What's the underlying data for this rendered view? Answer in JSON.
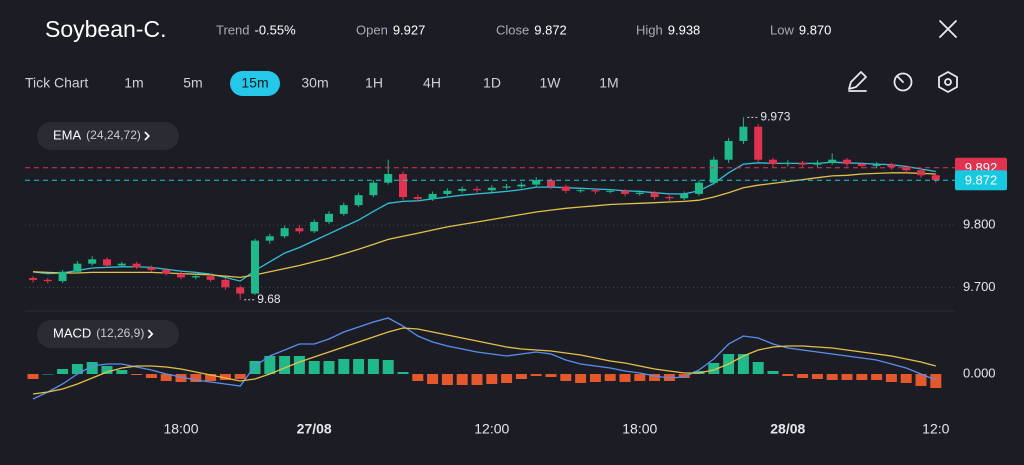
{
  "header": {
    "symbol": "Soybean-C.",
    "stats": [
      {
        "label": "Trend",
        "value": "-0.55%"
      },
      {
        "label": "Open",
        "value": "9.927"
      },
      {
        "label": "Close",
        "value": "9.872"
      },
      {
        "label": "High",
        "value": "9.938"
      },
      {
        "label": "Low",
        "value": "9.870"
      }
    ]
  },
  "toolbar": {
    "timeframes": [
      "Tick Chart",
      "1m",
      "5m",
      "15m",
      "30m",
      "1H",
      "4H",
      "1D",
      "1W",
      "1M"
    ],
    "active_timeframe": "15m"
  },
  "chart_data": [
    {
      "type": "candlestick",
      "indicator": {
        "name": "EMA",
        "params": "(24,24,72)"
      },
      "up_color": "#1fb98a",
      "down_color": "#e0334f",
      "ohlc": [
        [
          9.715,
          9.718,
          9.708,
          9.712
        ],
        [
          9.712,
          9.715,
          9.706,
          9.71
        ],
        [
          9.71,
          9.728,
          9.707,
          9.725
        ],
        [
          9.725,
          9.742,
          9.722,
          9.738
        ],
        [
          9.738,
          9.75,
          9.735,
          9.745
        ],
        [
          9.745,
          9.748,
          9.732,
          9.735
        ],
        [
          9.735,
          9.741,
          9.732,
          9.738
        ],
        [
          9.738,
          9.741,
          9.729,
          9.732
        ],
        [
          9.732,
          9.735,
          9.725,
          9.728
        ],
        [
          9.728,
          9.731,
          9.719,
          9.722
        ],
        [
          9.722,
          9.725,
          9.713,
          9.716
        ],
        [
          9.716,
          9.721,
          9.713,
          9.718
        ],
        [
          9.718,
          9.721,
          9.709,
          9.712
        ],
        [
          9.712,
          9.715,
          9.696,
          9.7
        ],
        [
          9.7,
          9.703,
          9.68,
          9.69
        ],
        [
          9.69,
          9.778,
          9.688,
          9.775
        ],
        [
          9.775,
          9.786,
          9.77,
          9.782
        ],
        [
          9.782,
          9.799,
          9.779,
          9.795
        ],
        [
          9.795,
          9.8,
          9.786,
          9.79
        ],
        [
          9.79,
          9.809,
          9.787,
          9.805
        ],
        [
          9.805,
          9.822,
          9.802,
          9.818
        ],
        [
          9.818,
          9.836,
          9.815,
          9.832
        ],
        [
          9.832,
          9.852,
          9.829,
          9.848
        ],
        [
          9.848,
          9.872,
          9.845,
          9.868
        ],
        [
          9.868,
          9.905,
          9.865,
          9.882
        ],
        [
          9.882,
          9.886,
          9.84,
          9.845
        ],
        [
          9.845,
          9.849,
          9.838,
          9.842
        ],
        [
          9.842,
          9.854,
          9.839,
          9.85
        ],
        [
          9.85,
          9.859,
          9.847,
          9.855
        ],
        [
          9.855,
          9.862,
          9.852,
          9.858
        ],
        [
          9.858,
          9.862,
          9.852,
          9.856
        ],
        [
          9.856,
          9.864,
          9.853,
          9.86
        ],
        [
          9.86,
          9.866,
          9.857,
          9.862
        ],
        [
          9.862,
          9.869,
          9.859,
          9.865
        ],
        [
          9.865,
          9.877,
          9.862,
          9.872
        ],
        [
          9.872,
          9.875,
          9.858,
          9.862
        ],
        [
          9.862,
          9.865,
          9.851,
          9.855
        ],
        [
          9.855,
          9.86,
          9.852,
          9.856
        ],
        [
          9.856,
          9.859,
          9.85,
          9.854
        ],
        [
          9.854,
          9.858,
          9.851,
          9.855
        ],
        [
          9.855,
          9.858,
          9.846,
          9.85
        ],
        [
          9.85,
          9.856,
          9.847,
          9.852
        ],
        [
          9.852,
          9.855,
          9.841,
          9.845
        ],
        [
          9.845,
          9.848,
          9.839,
          9.843
        ],
        [
          9.843,
          9.854,
          9.84,
          9.85
        ],
        [
          9.85,
          9.872,
          9.847,
          9.868
        ],
        [
          9.868,
          9.91,
          9.865,
          9.905
        ],
        [
          9.905,
          9.94,
          9.9,
          9.935
        ],
        [
          9.935,
          9.973,
          9.93,
          9.958
        ],
        [
          9.958,
          9.962,
          9.9,
          9.905
        ],
        [
          9.905,
          9.908,
          9.893,
          9.898
        ],
        [
          9.898,
          9.904,
          9.894,
          9.9
        ],
        [
          9.9,
          9.903,
          9.893,
          9.897
        ],
        [
          9.897,
          9.904,
          9.893,
          9.9
        ],
        [
          9.9,
          9.915,
          9.897,
          9.905
        ],
        [
          9.905,
          9.908,
          9.894,
          9.898
        ],
        [
          9.898,
          9.901,
          9.891,
          9.895
        ],
        [
          9.895,
          9.901,
          9.891,
          9.897
        ],
        [
          9.897,
          9.9,
          9.889,
          9.893
        ],
        [
          9.893,
          9.896,
          9.884,
          9.888
        ],
        [
          9.888,
          9.891,
          9.876,
          9.88
        ],
        [
          9.88,
          9.883,
          9.868,
          9.872
        ]
      ],
      "series": [
        {
          "color": "#2fc1d9",
          "values": [
            9.725,
            9.722,
            9.723,
            9.727,
            9.731,
            9.732,
            9.733,
            9.733,
            9.732,
            9.729,
            9.726,
            9.724,
            9.721,
            9.716,
            9.71,
            9.727,
            9.741,
            9.755,
            9.764,
            9.775,
            9.786,
            9.797,
            9.808,
            9.822,
            9.835,
            9.838,
            9.839,
            9.842,
            9.845,
            9.848,
            9.85,
            9.852,
            9.854,
            9.857,
            9.861,
            9.861,
            9.86,
            9.859,
            9.858,
            9.857,
            9.855,
            9.854,
            9.852,
            9.85,
            9.85,
            9.855,
            9.867,
            9.884,
            9.898,
            9.9,
            9.899,
            9.899,
            9.899,
            9.899,
            9.901,
            9.9,
            9.899,
            9.898,
            9.897,
            9.894,
            9.89,
            9.886
          ]
        },
        {
          "color": "#e3c04b",
          "values": [
            9.725,
            9.724,
            9.723,
            9.723,
            9.724,
            9.724,
            9.724,
            9.724,
            9.724,
            9.723,
            9.722,
            9.721,
            9.72,
            9.718,
            9.716,
            9.72,
            9.725,
            9.73,
            9.735,
            9.741,
            9.747,
            9.754,
            9.761,
            9.769,
            9.777,
            9.782,
            9.787,
            9.792,
            9.797,
            9.801,
            9.805,
            9.809,
            9.813,
            9.817,
            9.821,
            9.824,
            9.827,
            9.829,
            9.831,
            9.833,
            9.834,
            9.835,
            9.836,
            9.837,
            9.838,
            9.84,
            9.845,
            9.852,
            9.86,
            9.864,
            9.867,
            9.87,
            9.873,
            9.876,
            9.879,
            9.88,
            9.882,
            9.883,
            9.884,
            9.884,
            9.883,
            9.882
          ]
        }
      ],
      "high_marker": 9.973,
      "low_marker": 9.68,
      "price_lines": [
        {
          "value": 9.892,
          "color": "#e0334f"
        },
        {
          "value": 9.872,
          "color": "#16c8e0"
        }
      ],
      "ylim": [
        9.67,
        9.98
      ],
      "yticks": [
        {
          "value": 9.7,
          "label": "9.700"
        },
        {
          "value": 9.8,
          "label": "9.800"
        }
      ],
      "grid": true
    },
    {
      "type": "macd",
      "indicator": {
        "name": "MACD",
        "params": "(12,26,9)"
      },
      "categories": [
        null,
        null,
        null,
        null,
        null,
        null,
        null,
        null,
        null,
        null,
        "18:00",
        null,
        null,
        null,
        null,
        null,
        null,
        null,
        null,
        "27/08",
        null,
        null,
        null,
        null,
        null,
        null,
        null,
        null,
        null,
        null,
        null,
        "12:00",
        null,
        null,
        null,
        null,
        null,
        null,
        null,
        null,
        null,
        "18:00",
        null,
        null,
        null,
        null,
        null,
        null,
        null,
        null,
        null,
        "28/08",
        null,
        null,
        null,
        null,
        null,
        null,
        null,
        null,
        null,
        "12:0"
      ],
      "series": [
        {
          "color": "#5b8def",
          "values": [
            -0.025,
            -0.018,
            -0.01,
            0.0,
            0.008,
            0.01,
            0.01,
            0.007,
            0.004,
            0.0,
            -0.003,
            -0.006,
            -0.008,
            -0.01,
            -0.012,
            0.008,
            0.018,
            0.024,
            0.03,
            0.03,
            0.035,
            0.042,
            0.047,
            0.052,
            0.056,
            0.048,
            0.038,
            0.032,
            0.028,
            0.025,
            0.022,
            0.02,
            0.018,
            0.02,
            0.022,
            0.02,
            0.014,
            0.01,
            0.008,
            0.006,
            0.003,
            0.001,
            -0.002,
            -0.004,
            -0.003,
            0.004,
            0.015,
            0.03,
            0.038,
            0.036,
            0.03,
            0.026,
            0.024,
            0.022,
            0.02,
            0.018,
            0.016,
            0.014,
            0.01,
            0.006,
            0.0,
            -0.006
          ]
        },
        {
          "color": "#e3c04b",
          "values": [
            -0.02,
            -0.018,
            -0.015,
            -0.01,
            -0.004,
            0.002,
            0.006,
            0.008,
            0.008,
            0.007,
            0.005,
            0.002,
            -0.001,
            -0.004,
            -0.007,
            -0.005,
            0.0,
            0.006,
            0.012,
            0.017,
            0.022,
            0.027,
            0.032,
            0.037,
            0.042,
            0.046,
            0.045,
            0.042,
            0.039,
            0.036,
            0.033,
            0.03,
            0.027,
            0.025,
            0.024,
            0.023,
            0.021,
            0.019,
            0.016,
            0.013,
            0.011,
            0.008,
            0.005,
            0.003,
            0.001,
            0.001,
            0.004,
            0.01,
            0.018,
            0.024,
            0.027,
            0.028,
            0.028,
            0.027,
            0.026,
            0.024,
            0.022,
            0.02,
            0.018,
            0.015,
            0.012,
            0.008
          ]
        }
      ],
      "histogram": {
        "up_color": "#1fb98a",
        "down_color": "#e4582c",
        "values": [
          -0.005,
          0,
          0.005,
          0.01,
          0.012,
          0.008,
          0.004,
          -0.001,
          -0.004,
          -0.007,
          -0.008,
          -0.008,
          -0.007,
          -0.006,
          -0.005,
          0.013,
          0.018,
          0.018,
          0.018,
          0.013,
          0.013,
          0.015,
          0.015,
          0.015,
          0.014,
          0.002,
          -0.007,
          -0.01,
          -0.011,
          -0.011,
          -0.011,
          -0.01,
          -0.009,
          -0.005,
          -0.002,
          -0.003,
          -0.007,
          -0.009,
          -0.008,
          -0.007,
          -0.008,
          -0.007,
          -0.007,
          -0.007,
          -0.004,
          0.003,
          0.011,
          0.02,
          0.02,
          0.012,
          0.003,
          -0.002,
          -0.004,
          -0.005,
          -0.006,
          -0.006,
          -0.006,
          -0.006,
          -0.008,
          -0.009,
          -0.012,
          -0.014
        ]
      },
      "ylim": [
        -0.036,
        0.06
      ],
      "yticks": [
        {
          "value": 0,
          "label": "0.000"
        }
      ]
    }
  ]
}
